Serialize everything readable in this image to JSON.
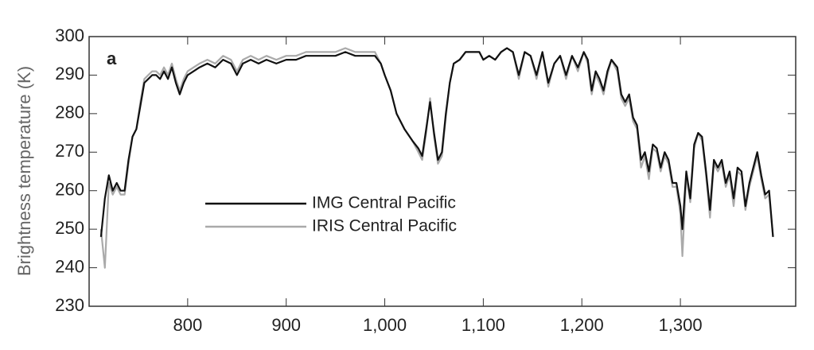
{
  "chart_data": {
    "type": "line",
    "annotation": "a",
    "y_label": "Brightness temperature (K)",
    "x": [
      712,
      716,
      720,
      724,
      728,
      732,
      736,
      740,
      744,
      748,
      752,
      756,
      760,
      764,
      768,
      772,
      776,
      780,
      784,
      788,
      792,
      796,
      800,
      806,
      812,
      820,
      828,
      836,
      844,
      850,
      856,
      864,
      872,
      880,
      890,
      900,
      910,
      920,
      930,
      940,
      950,
      960,
      970,
      980,
      990,
      996,
      1000,
      1006,
      1012,
      1020,
      1028,
      1034,
      1038,
      1042,
      1046,
      1050,
      1054,
      1058,
      1062,
      1066,
      1070,
      1076,
      1082,
      1090,
      1096,
      1100,
      1106,
      1112,
      1118,
      1124,
      1130,
      1136,
      1142,
      1148,
      1154,
      1160,
      1166,
      1172,
      1178,
      1184,
      1190,
      1196,
      1202,
      1206,
      1210,
      1214,
      1218,
      1222,
      1226,
      1230,
      1236,
      1240,
      1244,
      1248,
      1252,
      1256,
      1260,
      1264,
      1268,
      1272,
      1276,
      1280,
      1284,
      1288,
      1292,
      1296,
      1300,
      1302,
      1306,
      1310,
      1314,
      1318,
      1322,
      1326,
      1330,
      1334,
      1338,
      1342,
      1346,
      1350,
      1354,
      1358,
      1362,
      1366,
      1370,
      1374,
      1378,
      1382,
      1386,
      1390,
      1394
    ],
    "series": [
      {
        "name": "IRIS Central Pacific",
        "color": "#aaaaaa",
        "values": [
          250,
          240,
          262,
          259,
          261,
          259,
          259,
          267,
          274,
          276,
          283,
          289,
          290,
          291,
          291,
          290,
          292,
          290,
          293,
          289,
          286,
          289,
          291,
          292,
          293,
          294,
          293,
          295,
          294,
          291,
          294,
          295,
          294,
          295,
          294,
          295,
          295,
          296,
          296,
          296,
          296,
          297,
          296,
          296,
          296,
          293,
          290,
          286,
          280,
          276,
          273,
          270,
          268,
          275,
          284,
          274,
          267,
          269,
          279,
          288,
          293,
          294,
          296,
          296,
          296,
          294,
          295,
          294,
          296,
          297,
          296,
          289,
          296,
          295,
          289,
          296,
          287,
          293,
          295,
          289,
          295,
          291,
          296,
          293,
          285,
          290,
          288,
          285,
          290,
          294,
          291,
          284,
          282,
          284,
          278,
          276,
          266,
          269,
          263,
          271,
          270,
          265,
          269,
          267,
          261,
          261,
          254,
          243,
          264,
          257,
          271,
          275,
          273,
          264,
          253,
          267,
          265,
          267,
          261,
          264,
          256,
          265,
          264,
          255,
          261,
          265,
          269,
          263,
          258,
          259,
          248
        ]
      },
      {
        "name": "IMG Central Pacific",
        "color": "#111111",
        "values": [
          248,
          258,
          264,
          260,
          262,
          260,
          260,
          268,
          274,
          276,
          282,
          288,
          289,
          290,
          290,
          289,
          291,
          289,
          292,
          288,
          285,
          288,
          290,
          291,
          292,
          293,
          292,
          294,
          293,
          290,
          293,
          294,
          293,
          294,
          293,
          294,
          294,
          295,
          295,
          295,
          295,
          296,
          295,
          295,
          295,
          293,
          290,
          286,
          280,
          276,
          273,
          271,
          269,
          276,
          283,
          275,
          268,
          270,
          280,
          288,
          293,
          294,
          296,
          296,
          296,
          294,
          295,
          294,
          296,
          297,
          296,
          290,
          296,
          295,
          290,
          296,
          288,
          293,
          295,
          290,
          295,
          292,
          296,
          294,
          286,
          291,
          289,
          286,
          291,
          294,
          292,
          285,
          283,
          285,
          279,
          277,
          268,
          270,
          265,
          272,
          271,
          266,
          270,
          268,
          262,
          262,
          256,
          250,
          265,
          258,
          272,
          275,
          274,
          265,
          255,
          268,
          266,
          268,
          262,
          265,
          258,
          266,
          265,
          256,
          262,
          266,
          270,
          264,
          259,
          260,
          248
        ]
      }
    ],
    "xlim": [
      700,
      1417
    ],
    "ylim": [
      230,
      300
    ],
    "xticks": [
      800,
      900,
      {
        "value": 1000,
        "label": "1,000"
      },
      {
        "value": 1100,
        "label": "1,100"
      },
      {
        "value": 1200,
        "label": "1,200"
      },
      {
        "value": 1300,
        "label": "1,300"
      }
    ],
    "yticks": [
      230,
      240,
      250,
      260,
      270,
      280,
      290,
      300
    ]
  }
}
